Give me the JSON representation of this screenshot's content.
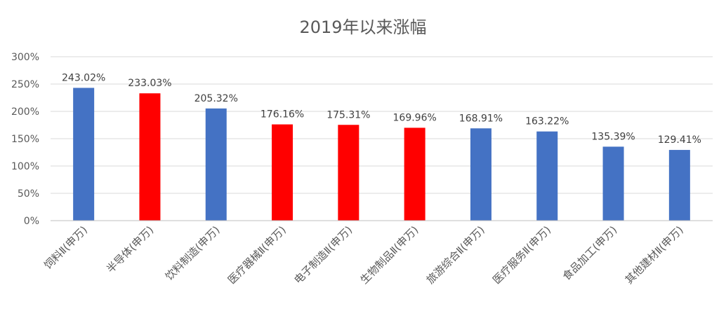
{
  "chart_data": {
    "type": "bar",
    "title": "2019年以来涨幅",
    "xlabel": "",
    "ylabel": "",
    "ylim": [
      0,
      300
    ],
    "yticks": [
      0,
      50,
      100,
      150,
      200,
      250,
      300
    ],
    "ytick_labels": [
      "0%",
      "50%",
      "100%",
      "150%",
      "200%",
      "250%",
      "300%"
    ],
    "grid": true,
    "legend": "none",
    "categories": [
      "饲料Ⅱ(申万)",
      "半导体(申万)",
      "饮料制造(申万)",
      "医疗器械Ⅱ(申万)",
      "电子制造Ⅱ(申万)",
      "生物制品Ⅱ(申万)",
      "旅游综合Ⅱ(申万)",
      "医疗服务Ⅱ(申万)",
      "食品加工(申万)",
      "其他建材Ⅱ(申万)"
    ],
    "values": [
      243.02,
      233.03,
      205.32,
      176.16,
      175.31,
      169.96,
      168.91,
      163.22,
      135.39,
      129.41
    ],
    "data_labels": [
      "243.02%",
      "233.03%",
      "205.32%",
      "176.16%",
      "175.31%",
      "169.96%",
      "168.91%",
      "163.22%",
      "135.39%",
      "129.41%"
    ],
    "bar_colors": [
      "#4472c4",
      "#ff0000",
      "#4472c4",
      "#ff0000",
      "#ff0000",
      "#ff0000",
      "#4472c4",
      "#4472c4",
      "#4472c4",
      "#4472c4"
    ]
  }
}
